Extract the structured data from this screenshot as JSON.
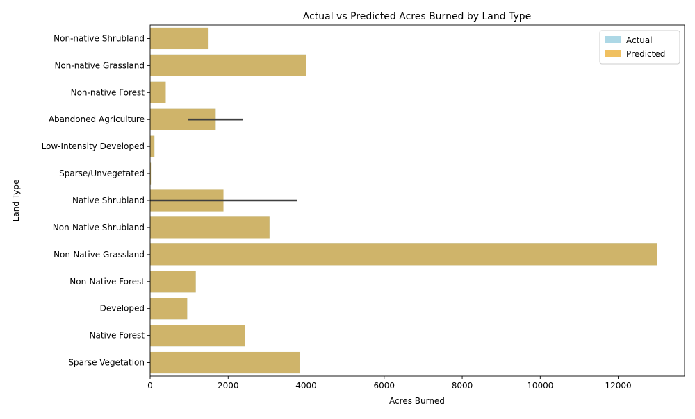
{
  "chart_data": {
    "type": "bar",
    "orientation": "horizontal",
    "title": "Actual vs Predicted Acres Burned by Land Type",
    "xlabel": "Acres Burned",
    "ylabel": "Land Type",
    "xlim": [
      0,
      13700
    ],
    "x_ticks": [
      0,
      2000,
      4000,
      6000,
      8000,
      10000,
      12000
    ],
    "x_tick_labels": [
      "0",
      "2000",
      "4000",
      "6000",
      "8000",
      "10000",
      "12000"
    ],
    "grid": false,
    "legend_position": "top-right",
    "categories": [
      "Non-native Shrubland",
      "Non-native Grassland",
      "Non-native Forest",
      "Abandoned Agriculture",
      "Low-Intensity Developed",
      "Sparse/Unvegetated",
      "Native Shrubland",
      "Non-Native Shrubland",
      "Non-Native Grassland",
      "Non-Native Forest",
      "Developed",
      "Native Forest",
      "Sparse Vegetation"
    ],
    "series": [
      {
        "name": "Actual",
        "color": "#add8e6",
        "values": [
          1480,
          4000,
          400,
          1680,
          110,
          20,
          1880,
          3060,
          13000,
          1170,
          950,
          2440,
          3830
        ]
      },
      {
        "name": "Predicted",
        "color": "#f0c060",
        "values": [
          1480,
          4000,
          400,
          1680,
          110,
          20,
          1880,
          3060,
          13000,
          1170,
          950,
          2440,
          3830
        ]
      }
    ],
    "bar_color_rendered": "#cfb46a",
    "error_bars": [
      {
        "category": "Abandoned Agriculture",
        "low": 980,
        "high": 2380
      },
      {
        "category": "Native Shrubland",
        "low": 0,
        "high": 3760
      }
    ]
  }
}
